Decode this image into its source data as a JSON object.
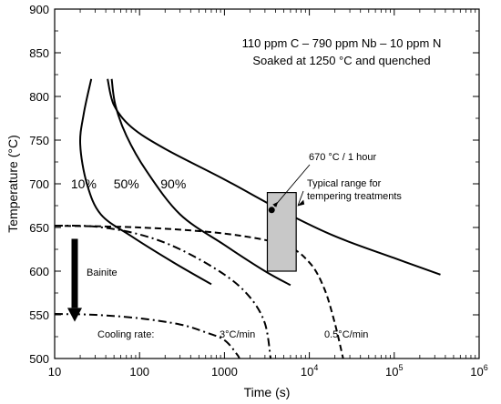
{
  "chart_data": {
    "type": "line",
    "title_lines": [
      "110 ppm C – 790 ppm Nb – 10 ppm N",
      "Soaked at 1250 °C and quenched"
    ],
    "xlabel": "Time (s)",
    "ylabel": "Temperature (°C)",
    "x_scale": "log",
    "xlim": [
      10,
      1000000
    ],
    "ylim": [
      500,
      900
    ],
    "x_ticks": [
      {
        "value": 10,
        "base": "10",
        "exp": ""
      },
      {
        "value": 100,
        "base": "100",
        "exp": ""
      },
      {
        "value": 1000,
        "base": "1000",
        "exp": ""
      },
      {
        "value": 10000,
        "base": "10",
        "exp": "4"
      },
      {
        "value": 100000,
        "base": "10",
        "exp": "5"
      },
      {
        "value": 1000000,
        "base": "10",
        "exp": "6"
      }
    ],
    "y_ticks": [
      500,
      550,
      600,
      650,
      700,
      750,
      800,
      850,
      900
    ],
    "series": [
      {
        "name": "10%",
        "style": "solid",
        "points": [
          [
            27,
            820
          ],
          [
            22,
            780
          ],
          [
            20,
            745
          ],
          [
            24,
            700
          ],
          [
            35,
            665
          ],
          [
            80,
            640
          ],
          [
            250,
            610
          ],
          [
            700,
            585
          ]
        ]
      },
      {
        "name": "50%",
        "style": "solid",
        "points": [
          [
            47,
            820
          ],
          [
            52,
            790
          ],
          [
            70,
            755
          ],
          [
            120,
            715
          ],
          [
            300,
            665
          ],
          [
            1000,
            630
          ],
          [
            3000,
            600
          ],
          [
            6000,
            584
          ]
        ]
      },
      {
        "name": "90%",
        "style": "solid",
        "points": [
          [
            42,
            820
          ],
          [
            50,
            790
          ],
          [
            80,
            765
          ],
          [
            200,
            740
          ],
          [
            1000,
            705
          ],
          [
            5000,
            668
          ],
          [
            20000,
            640
          ],
          [
            100000,
            615
          ],
          [
            350000,
            596
          ]
        ]
      },
      {
        "name": "3°C/min",
        "style": "dashdot",
        "points": [
          [
            10,
            652
          ],
          [
            30,
            651
          ],
          [
            100,
            642
          ],
          [
            300,
            625
          ],
          [
            1000,
            596
          ],
          [
            2000,
            570
          ],
          [
            3000,
            540
          ],
          [
            3500,
            500
          ]
        ]
      },
      {
        "name": "0.5°C/min",
        "style": "dashed",
        "points": [
          [
            10,
            652
          ],
          [
            100,
            650
          ],
          [
            1000,
            643
          ],
          [
            5000,
            630
          ],
          [
            10000,
            610
          ],
          [
            15000,
            580
          ],
          [
            20000,
            540
          ],
          [
            25000,
            500
          ]
        ]
      },
      {
        "name": "Bainite",
        "style": "dashdot",
        "points": [
          [
            10,
            551
          ],
          [
            30,
            550
          ],
          [
            100,
            546
          ],
          [
            300,
            539
          ],
          [
            600,
            530
          ],
          [
            1000,
            521
          ],
          [
            1400,
            505
          ],
          [
            1500,
            500
          ]
        ]
      }
    ],
    "curve_labels": [
      {
        "text": "10%",
        "x": 22,
        "y": 700
      },
      {
        "text": "50%",
        "x": 70,
        "y": 700
      },
      {
        "text": "90%",
        "x": 250,
        "y": 700
      }
    ],
    "tempering_box": {
      "x_range": [
        3200,
        7000
      ],
      "y_range": [
        600,
        690
      ],
      "fill": "#c8c8c8"
    },
    "marker": {
      "label": "670 °C / 1 hour",
      "x": 3600,
      "y": 670
    },
    "annotations": {
      "typical_range_lines": [
        "Typical range for",
        "tempering treatments"
      ],
      "bainite": "Bainite",
      "cooling_rate": "Cooling rate:",
      "rate_3": "3°C/min",
      "rate_05": "0.5°C/min"
    }
  }
}
